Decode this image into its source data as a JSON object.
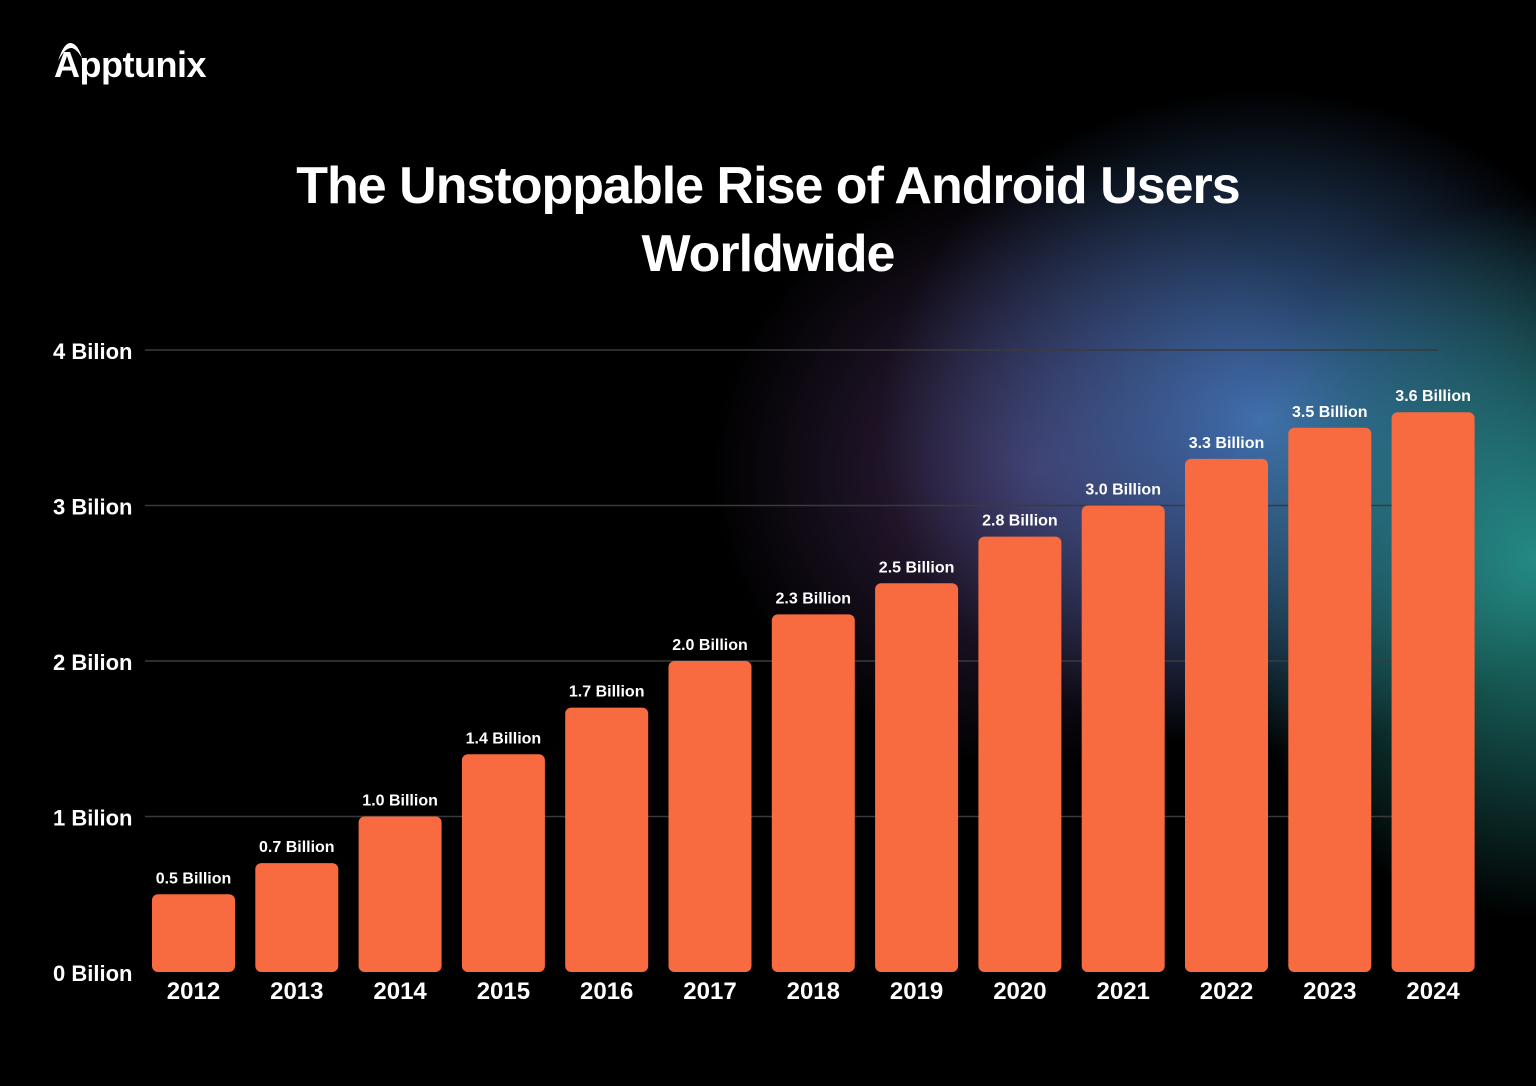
{
  "brand": {
    "logo_text": "Apptunix"
  },
  "chart_data": {
    "type": "bar",
    "title_line1": "The Unstoppable Rise of Android Users",
    "title_line2": "Worldwide",
    "xlabel": "",
    "ylabel": "",
    "ylim": [
      0,
      4
    ],
    "grid": true,
    "yticks": [
      {
        "value": 0,
        "label": "0 Bilion"
      },
      {
        "value": 1,
        "label": "1 Bilion"
      },
      {
        "value": 2,
        "label": "2 Bilion"
      },
      {
        "value": 3,
        "label": "3 Bilion"
      },
      {
        "value": 4,
        "label": "4 Bilion"
      }
    ],
    "categories": [
      "2012",
      "2013",
      "2014",
      "2015",
      "2016",
      "2017",
      "2018",
      "2019",
      "2020",
      "2021",
      "2022",
      "2023",
      "2024"
    ],
    "values": [
      0.5,
      0.7,
      1.0,
      1.4,
      1.7,
      2.0,
      2.3,
      2.5,
      2.8,
      3.0,
      3.3,
      3.5,
      3.6
    ],
    "data_labels": [
      "0.5 Billion",
      "0.7 Billion",
      "1.0 Billion",
      "1.4 Billion",
      "1.7 Billion",
      "2.0 Billion",
      "2.3 Billion",
      "2.5 Billion",
      "2.8 Billion",
      "3.0 Billion",
      "3.3 Billion",
      "3.5 Billion",
      "3.6 Billion"
    ],
    "colors": {
      "bar": "#F86B40",
      "grid": "#3a3a3a"
    }
  }
}
